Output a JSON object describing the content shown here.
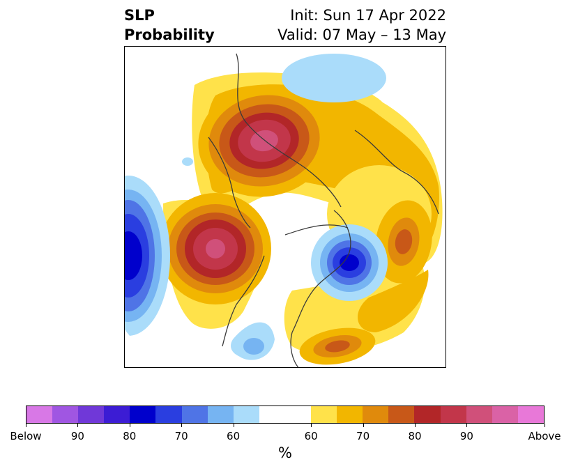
{
  "header": {
    "title_line1": "SLP",
    "title_line2": "Probability",
    "init_text": "Init: Sun 17 Apr 2022",
    "valid_text": "Valid: 07 May – 13 May"
  },
  "map": {
    "projection": "north-polar-stereographic",
    "colors": {
      "above_light_yellow": "#ffe24a",
      "above_gold": "#f2b600",
      "above_orange": "#e08a0c",
      "above_dark_orange": "#c85818",
      "above_red": "#b22628",
      "above_crimson": "#c2364a",
      "above_rose": "#d0507a",
      "below_pale_blue": "#aadcfa",
      "below_light_blue": "#76b4f2",
      "below_blue": "#4f74e6",
      "below_royal": "#2a3ee0",
      "below_deep": "#0000cc",
      "coast": "#3a3a3a"
    },
    "anomalies": [
      {
        "region": "Northern Europe / Scandinavia",
        "sign": "above",
        "peak": "Above"
      },
      {
        "region": "Northeast Pacific / Gulf of Alaska",
        "sign": "above",
        "peak": "Above"
      },
      {
        "region": "Davis Strait / Baffin Bay",
        "sign": "below",
        "peak": "80"
      },
      {
        "region": "Central North Pacific",
        "sign": "below",
        "peak": "80"
      },
      {
        "region": "Western Atlantic off US East Coast",
        "sign": "above",
        "peak": "70"
      },
      {
        "region": "Siberia / Arctic Russia",
        "sign": "above",
        "peak": "60"
      },
      {
        "region": "Southern US / Mexico",
        "sign": "below",
        "peak": "60"
      }
    ]
  },
  "colorbar": {
    "unit_label": "%",
    "segments": [
      "#d878e6",
      "#a056e2",
      "#7038d8",
      "#3c1cd4",
      "#0000cc",
      "#2a3ee0",
      "#4f74e6",
      "#76b4f2",
      "#aadcfa",
      "#ffffff",
      "#ffffff",
      "#ffe24a",
      "#f2b600",
      "#e08a0c",
      "#c85818",
      "#b22628",
      "#c2364a",
      "#d0507a",
      "#da62a6",
      "#e878d8"
    ],
    "tick_labels": [
      "Below",
      "90",
      "80",
      "70",
      "60",
      "60",
      "70",
      "80",
      "90",
      "Above"
    ]
  }
}
